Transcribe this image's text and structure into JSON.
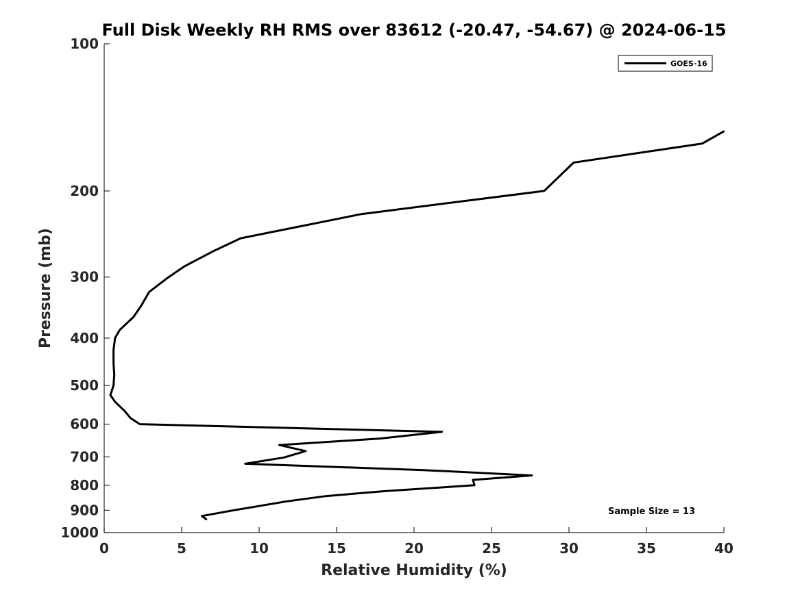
{
  "chart_data": {
    "type": "line",
    "title": "Full Disk Weekly RH RMS over 83612 (-20.47, -54.67) @ 2024-06-15",
    "xlabel": "Relative Humidity (%)",
    "ylabel": "Pressure (mb)",
    "xlim": [
      0,
      40
    ],
    "ylim": [
      100,
      1000
    ],
    "y_scale": "log",
    "y_reversed": true,
    "x_ticks": [
      "0",
      "5",
      "10",
      "15",
      "20",
      "25",
      "30",
      "35",
      "40"
    ],
    "y_ticks": [
      "100",
      "200",
      "300",
      "400",
      "500",
      "600",
      "700",
      "800",
      "900",
      "1000"
    ],
    "grid": false,
    "legend_position": "top-right",
    "annotation": "Sample Size = 13",
    "series": [
      {
        "name": "GOES-16",
        "color": "#000000",
        "points": [
          [
            40.0,
            151
          ],
          [
            38.6,
            160
          ],
          [
            30.3,
            175
          ],
          [
            28.4,
            200
          ],
          [
            16.6,
            223
          ],
          [
            8.8,
            250
          ],
          [
            7.0,
            266
          ],
          [
            5.2,
            285
          ],
          [
            4.1,
            301
          ],
          [
            2.9,
            322
          ],
          [
            2.4,
            343
          ],
          [
            1.9,
            362
          ],
          [
            1.0,
            385
          ],
          [
            0.7,
            400
          ],
          [
            0.6,
            423
          ],
          [
            0.6,
            450
          ],
          [
            0.65,
            475
          ],
          [
            0.6,
            500
          ],
          [
            0.4,
            523
          ],
          [
            0.7,
            540
          ],
          [
            1.3,
            563
          ],
          [
            1.7,
            583
          ],
          [
            2.3,
            600
          ],
          [
            21.8,
            622
          ],
          [
            17.8,
            642
          ],
          [
            11.3,
            662
          ],
          [
            13.0,
            681
          ],
          [
            11.6,
            702
          ],
          [
            9.1,
            723
          ],
          [
            20.6,
            745
          ],
          [
            27.6,
            764
          ],
          [
            23.8,
            780
          ],
          [
            23.9,
            800
          ],
          [
            18.0,
            823
          ],
          [
            14.3,
            842
          ],
          [
            11.8,
            863
          ],
          [
            8.2,
            902
          ],
          [
            6.3,
            925
          ],
          [
            6.6,
            940
          ]
        ]
      }
    ]
  }
}
